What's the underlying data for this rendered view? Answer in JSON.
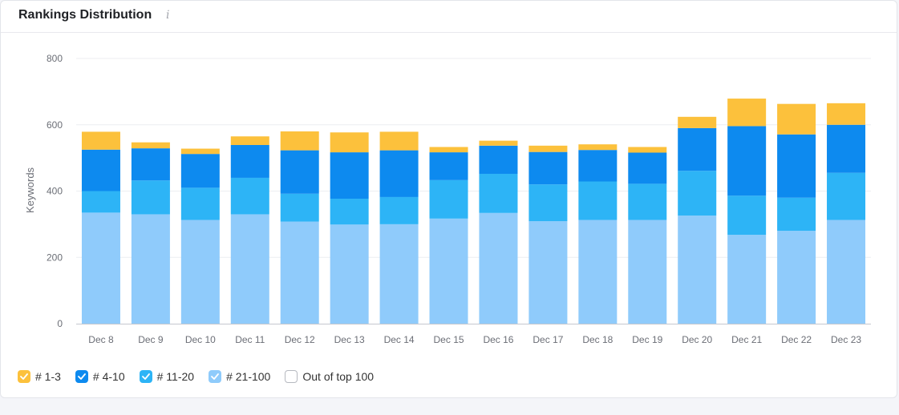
{
  "header": {
    "title": "Rankings Distribution",
    "info_glyph": "i"
  },
  "colors": {
    "top_1_3": "#fcc13c",
    "top_4_10": "#0d8aef",
    "top_11_20": "#2db4f6",
    "top_21_100": "#8fcbfb",
    "grid": "#eceef1",
    "axis": "#c5c8ce",
    "tick_text": "#6b6e76"
  },
  "legend": [
    {
      "label": "# 1-3",
      "checked": true,
      "color": "#fcc13c",
      "icon": "checkbox-checked-icon"
    },
    {
      "label": "# 4-10",
      "checked": true,
      "color": "#0d8aef",
      "icon": "checkbox-checked-icon"
    },
    {
      "label": "# 11-20",
      "checked": true,
      "color": "#2db4f6",
      "icon": "checkbox-checked-icon"
    },
    {
      "label": "# 21-100",
      "checked": true,
      "color": "#8fcbfb",
      "icon": "checkbox-checked-icon"
    },
    {
      "label": "Out of top 100",
      "checked": false,
      "color": "#ffffff",
      "icon": "checkbox-unchecked-icon"
    }
  ],
  "chart_data": {
    "type": "bar",
    "stacked": true,
    "ylabel": "Keywords",
    "xlabel": "",
    "ylim": [
      0,
      800
    ],
    "yticks": [
      0,
      200,
      400,
      600,
      800
    ],
    "grid": true,
    "legend_position": "bottom-left",
    "categories": [
      "Dec 8",
      "Dec 9",
      "Dec 10",
      "Dec 11",
      "Dec 12",
      "Dec 13",
      "Dec 14",
      "Dec 15",
      "Dec 16",
      "Dec 17",
      "Dec 18",
      "Dec 19",
      "Dec 20",
      "Dec 21",
      "Dec 22",
      "Dec 23"
    ],
    "series": [
      {
        "name": "# 21-100",
        "color": "#8fcbfb",
        "values": [
          335,
          330,
          313,
          330,
          308,
          299,
          300,
          317,
          334,
          309,
          313,
          313,
          326,
          268,
          280,
          313
        ]
      },
      {
        "name": "# 11-20",
        "color": "#2db4f6",
        "values": [
          65,
          102,
          97,
          110,
          84,
          78,
          82,
          116,
          118,
          111,
          116,
          109,
          135,
          118,
          100,
          142
        ]
      },
      {
        "name": "# 4-10",
        "color": "#0d8aef",
        "values": [
          125,
          97,
          102,
          99,
          131,
          140,
          141,
          84,
          85,
          98,
          95,
          94,
          129,
          210,
          191,
          145
        ]
      },
      {
        "name": "# 1-3",
        "color": "#fcc13c",
        "values": [
          54,
          18,
          16,
          26,
          57,
          60,
          56,
          16,
          15,
          19,
          17,
          17,
          34,
          83,
          92,
          65
        ]
      }
    ]
  }
}
